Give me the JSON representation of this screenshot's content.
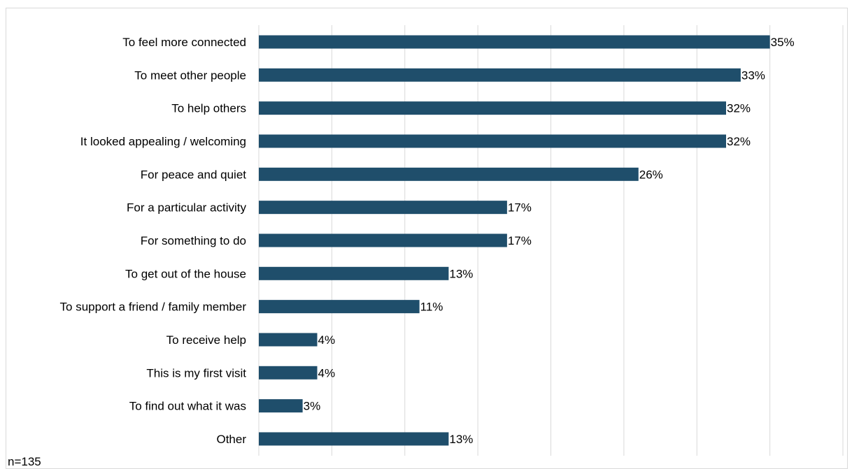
{
  "chart_data": {
    "type": "bar",
    "orientation": "horizontal",
    "categories": [
      "To feel more connected",
      "To meet other people",
      "To help others",
      "It looked appealing / welcoming",
      "For peace and quiet",
      "For a particular activity",
      "For something to do",
      "To get out of the house",
      "To support a friend / family member",
      "To receive help",
      "This is my first visit",
      "To find out what it was",
      "Other"
    ],
    "values": [
      35,
      33,
      32,
      32,
      26,
      17,
      17,
      13,
      11,
      4,
      4,
      3,
      13
    ],
    "value_labels": [
      "35%",
      "33%",
      "32%",
      "32%",
      "26%",
      "17%",
      "17%",
      "13%",
      "11%",
      "4%",
      "4%",
      "3%",
      "13%"
    ],
    "xlim": [
      0,
      40
    ],
    "x_gridlines": true,
    "bar_color": "#1f4e6b",
    "gridline_color": "#d9d9d9"
  },
  "footnote": "n=135"
}
